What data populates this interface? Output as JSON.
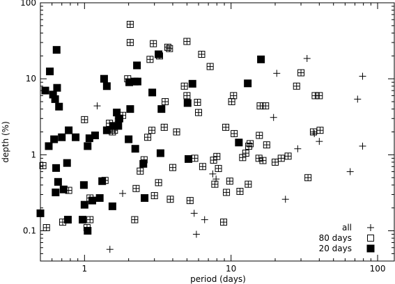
{
  "chart_data": {
    "type": "scatter",
    "title": "",
    "xlabel": "period (days)",
    "ylabel": "depth (%)",
    "xscale": "log",
    "yscale": "log",
    "xlim": [
      0.5,
      130
    ],
    "ylim": [
      0.04,
      100
    ],
    "xticks": [
      {
        "value": 1,
        "label": "1"
      },
      {
        "value": 10,
        "label": "10"
      },
      {
        "value": 100,
        "label": "100"
      }
    ],
    "yticks": [
      {
        "value": 0.1,
        "label": "0.1"
      },
      {
        "value": 1,
        "label": "1"
      },
      {
        "value": 10,
        "label": "10"
      },
      {
        "value": 100,
        "label": "100"
      }
    ],
    "grid": false,
    "legend": "bottom-right",
    "series": [
      {
        "name": "all",
        "marker": "plus",
        "color": "#000000",
        "points": [
          [
            1.22,
            4.4
          ],
          [
            1.49,
            0.057
          ],
          [
            1.82,
            0.31
          ],
          [
            5.6,
            0.17
          ],
          [
            5.8,
            0.09
          ],
          [
            6.6,
            0.14
          ],
          [
            7.5,
            0.56
          ],
          [
            7.9,
            0.48
          ],
          [
            19.5,
            3.1
          ],
          [
            20.5,
            11.8
          ],
          [
            23.5,
            0.26
          ],
          [
            28.5,
            1.2
          ],
          [
            33,
            18.5
          ],
          [
            37,
            1.9
          ],
          [
            40,
            1.5
          ],
          [
            65,
            0.6
          ],
          [
            73,
            5.4
          ],
          [
            79,
            10.8
          ],
          [
            79,
            1.3
          ]
        ]
      },
      {
        "name": "80 days",
        "marker": "hollow-square",
        "color": "#000000",
        "points": [
          [
            0.52,
            0.72
          ],
          [
            0.55,
            0.11
          ],
          [
            0.71,
            0.13
          ],
          [
            0.78,
            0.34
          ],
          [
            1.0,
            2.9
          ],
          [
            1.04,
            0.11
          ],
          [
            1.09,
            0.27
          ],
          [
            1.09,
            0.14
          ],
          [
            1.38,
            0.46
          ],
          [
            1.48,
            2.6
          ],
          [
            1.55,
            2.0
          ],
          [
            1.6,
            2.1
          ],
          [
            1.7,
            3.0
          ],
          [
            1.82,
            3.3
          ],
          [
            1.97,
            10.0
          ],
          [
            2.05,
            52.0
          ],
          [
            2.05,
            30.0
          ],
          [
            2.2,
            0.14
          ],
          [
            2.25,
            0.36
          ],
          [
            2.4,
            0.61
          ],
          [
            2.55,
            0.86
          ],
          [
            2.7,
            1.7
          ],
          [
            2.8,
            18.0
          ],
          [
            2.88,
            2.1
          ],
          [
            2.95,
            29.0
          ],
          [
            3.0,
            0.29
          ],
          [
            3.2,
            0.43
          ],
          [
            3.25,
            20.0
          ],
          [
            3.5,
            2.3
          ],
          [
            3.55,
            5.0
          ],
          [
            3.7,
            26.0
          ],
          [
            3.8,
            25.0
          ],
          [
            3.85,
            0.26
          ],
          [
            4.0,
            0.68
          ],
          [
            4.25,
            2.0
          ],
          [
            4.8,
            8.0
          ],
          [
            5.0,
            6.0
          ],
          [
            5.0,
            31.0
          ],
          [
            5.1,
            0.88
          ],
          [
            5.25,
            0.25
          ],
          [
            5.65,
            0.9
          ],
          [
            5.9,
            4.9
          ],
          [
            6.0,
            3.6
          ],
          [
            6.3,
            21.0
          ],
          [
            6.4,
            0.7
          ],
          [
            7.2,
            14.5
          ],
          [
            7.6,
            0.85
          ],
          [
            7.75,
            0.41
          ],
          [
            8.0,
            0.95
          ],
          [
            8.2,
            0.66
          ],
          [
            8.9,
            0.13
          ],
          [
            9.2,
            2.3
          ],
          [
            9.3,
            0.32
          ],
          [
            9.8,
            0.45
          ],
          [
            10.1,
            5.0
          ],
          [
            10.4,
            6.0
          ],
          [
            10.5,
            1.9
          ],
          [
            11.5,
            0.33
          ],
          [
            12.0,
            0.92
          ],
          [
            12.6,
            1.05
          ],
          [
            13.1,
            0.41
          ],
          [
            13.2,
            1.3
          ],
          [
            13.5,
            1.4
          ],
          [
            15.5,
            0.9
          ],
          [
            15.6,
            1.8
          ],
          [
            15.8,
            4.4
          ],
          [
            16.5,
            0.84
          ],
          [
            17.2,
            4.4
          ],
          [
            17.5,
            1.35
          ],
          [
            20.0,
            0.8
          ],
          [
            22.0,
            0.9
          ],
          [
            24.5,
            0.96
          ],
          [
            28.0,
            8.0
          ],
          [
            30.0,
            12.0
          ],
          [
            33.5,
            0.5
          ],
          [
            36.5,
            2.0
          ],
          [
            37.5,
            6.0
          ],
          [
            40.0,
            6.0
          ],
          [
            40.5,
            2.1
          ]
        ]
      },
      {
        "name": "20 days",
        "marker": "filled-square",
        "color": "#000000",
        "points": [
          [
            0.5,
            0.17
          ],
          [
            0.54,
            7.0
          ],
          [
            0.57,
            1.3
          ],
          [
            0.58,
            12.5
          ],
          [
            0.61,
            6.2
          ],
          [
            0.62,
            1.6
          ],
          [
            0.63,
            5.4
          ],
          [
            0.635,
            0.32
          ],
          [
            0.64,
            0.67
          ],
          [
            0.645,
            24.0
          ],
          [
            0.65,
            7.6
          ],
          [
            0.66,
            0.44
          ],
          [
            0.67,
            4.3
          ],
          [
            0.7,
            1.7
          ],
          [
            0.72,
            0.35
          ],
          [
            0.76,
            0.78
          ],
          [
            0.77,
            0.14
          ],
          [
            0.78,
            2.1
          ],
          [
            0.87,
            1.7
          ],
          [
            0.97,
            0.14
          ],
          [
            0.99,
            0.4
          ],
          [
            1.0,
            0.22
          ],
          [
            1.05,
            1.3
          ],
          [
            1.05,
            0.1
          ],
          [
            1.08,
            1.65
          ],
          [
            1.13,
            0.25
          ],
          [
            1.18,
            1.8
          ],
          [
            1.27,
            0.27
          ],
          [
            1.32,
            0.45
          ],
          [
            1.36,
            10.0
          ],
          [
            1.42,
            8.0
          ],
          [
            1.42,
            2.1
          ],
          [
            1.55,
            0.21
          ],
          [
            1.57,
            2.4
          ],
          [
            1.66,
            3.6
          ],
          [
            1.7,
            2.4
          ],
          [
            1.73,
            3.0
          ],
          [
            2.0,
            1.6
          ],
          [
            2.02,
            9.0
          ],
          [
            2.05,
            4.0
          ],
          [
            2.2,
            9.2
          ],
          [
            2.22,
            1.2
          ],
          [
            2.28,
            15.0
          ],
          [
            2.3,
            9.2
          ],
          [
            2.52,
            0.76
          ],
          [
            2.57,
            0.27
          ],
          [
            2.9,
            6.6
          ],
          [
            3.2,
            21.0
          ],
          [
            3.3,
            1.05
          ],
          [
            3.35,
            4.0
          ],
          [
            5.05,
            4.8
          ],
          [
            5.12,
            0.88
          ],
          [
            5.45,
            8.6
          ],
          [
            11.3,
            1.45
          ],
          [
            13.0,
            8.7
          ],
          [
            16.0,
            18.0
          ]
        ]
      }
    ]
  }
}
